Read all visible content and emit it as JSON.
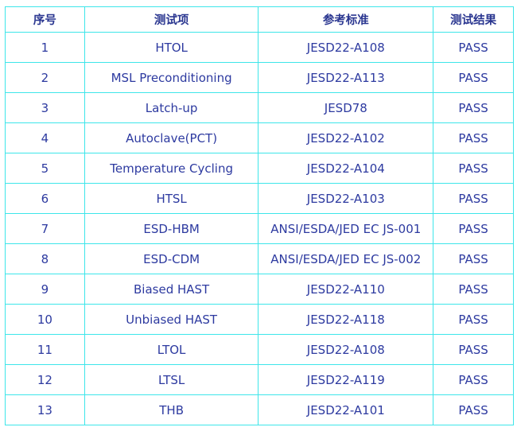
{
  "headers": [
    "序号",
    "测试项",
    "参考标准",
    "测试结果"
  ],
  "rows": [
    [
      "1",
      "HTOL",
      "JESD22-A108",
      "PASS"
    ],
    [
      "2",
      "MSL Preconditioning",
      "JESD22-A113",
      "PASS"
    ],
    [
      "3",
      "Latch-up",
      "JESD78",
      "PASS"
    ],
    [
      "4",
      "Autoclave(PCT)",
      "JESD22-A102",
      "PASS"
    ],
    [
      "5",
      "Temperature Cycling",
      "JESD22-A104",
      "PASS"
    ],
    [
      "6",
      "HTSL",
      "JESD22-A103",
      "PASS"
    ],
    [
      "7",
      "ESD-HBM",
      "ANSI/ESDA/JED EC JS-001",
      "PASS"
    ],
    [
      "8",
      "ESD-CDM",
      "ANSI/ESDA/JED EC JS-002",
      "PASS"
    ],
    [
      "9",
      "Biased HAST",
      "JESD22-A110",
      "PASS"
    ],
    [
      "10",
      "Unbiased HAST",
      "JESD22-A118",
      "PASS"
    ],
    [
      "11",
      "LTOL",
      "JESD22-A108",
      "PASS"
    ],
    [
      "12",
      "LTSL",
      "JESD22-A119",
      "PASS"
    ],
    [
      "13",
      "THB",
      "JESD22-A101",
      "PASS"
    ]
  ],
  "colors": {
    "border": "#3ee6ea",
    "text": "#2d3aa0"
  }
}
